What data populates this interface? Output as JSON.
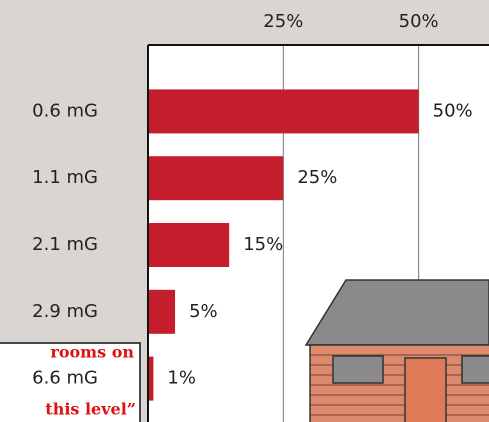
{
  "chart_data": {
    "type": "bar",
    "orientation": "horizontal",
    "categories": [
      "0.6 mG",
      "1.1 mG",
      "2.1 mG",
      "2.9 mG",
      "6.6 mG"
    ],
    "values": [
      50,
      25,
      15,
      5,
      1
    ],
    "value_labels": [
      "50%",
      "25%",
      "15%",
      "5%",
      "1%"
    ],
    "color": "#c41e2d",
    "xlim": [
      0,
      63
    ],
    "xticks": [
      {
        "value": 25,
        "label": "25%"
      },
      {
        "value": 50,
        "label": "50%"
      }
    ],
    "grid": true,
    "annotations": [
      "rooms on",
      "this level”"
    ]
  }
}
